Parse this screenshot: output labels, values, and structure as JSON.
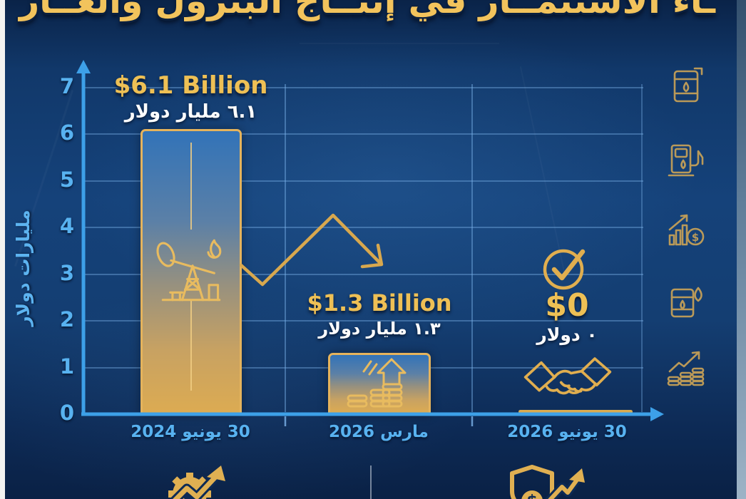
{
  "title": {
    "text": "ـاء الاستثمــار في إنتــاج البترول والغــاز"
  },
  "chart_data": {
    "type": "bar",
    "title": "ـاء الاستثمــار في إنتــاج البترول والغــاز",
    "ylabel": "مليارات دولار",
    "xlabel": "",
    "ylim": [
      0,
      7
    ],
    "yticks": [
      "0",
      "1",
      "2",
      "3",
      "4",
      "5",
      "6",
      "7"
    ],
    "grid": "horizontal lines at each tick, vertical separators between periods",
    "legend": "none",
    "categories": [
      "30 يونيو 2024",
      "مارس 2026",
      "30 يونيو 2026"
    ],
    "values": [
      6.1,
      1.3,
      0
    ],
    "bar_annotations": [
      {
        "en": "$6.1 Billion",
        "ar": "٦.١ مليار دولار"
      },
      {
        "en": "$1.3 Billion",
        "ar": "١.٣ مليار دولار"
      },
      {
        "en": "$0",
        "ar": "٠ دولار"
      }
    ],
    "trend_annotation": "gold zigzag arrow falling from first bar toward second bar"
  },
  "icons": {
    "dollar_glyph": "$",
    "bar_2024": "oil-pumpjack-flare",
    "bar_2026": "coin-stacks-up-arrow",
    "zero_group": [
      "check-circle",
      "handshake"
    ],
    "right_column": [
      "oil-barrel",
      "fuel-pump",
      "chart-growth-dollar",
      "oil-barrel-drop",
      "coins-rising-arrow"
    ],
    "bottom_row": [
      "gear-trend-arrow",
      "shield-dollar-arrow"
    ]
  },
  "colors": {
    "background": "#15427a",
    "gold": "#e9b94e",
    "axis_blue": "#3da0e8",
    "label_blue": "#58b2f0",
    "white": "#ffffff",
    "bar_border": "#e5b35c"
  }
}
